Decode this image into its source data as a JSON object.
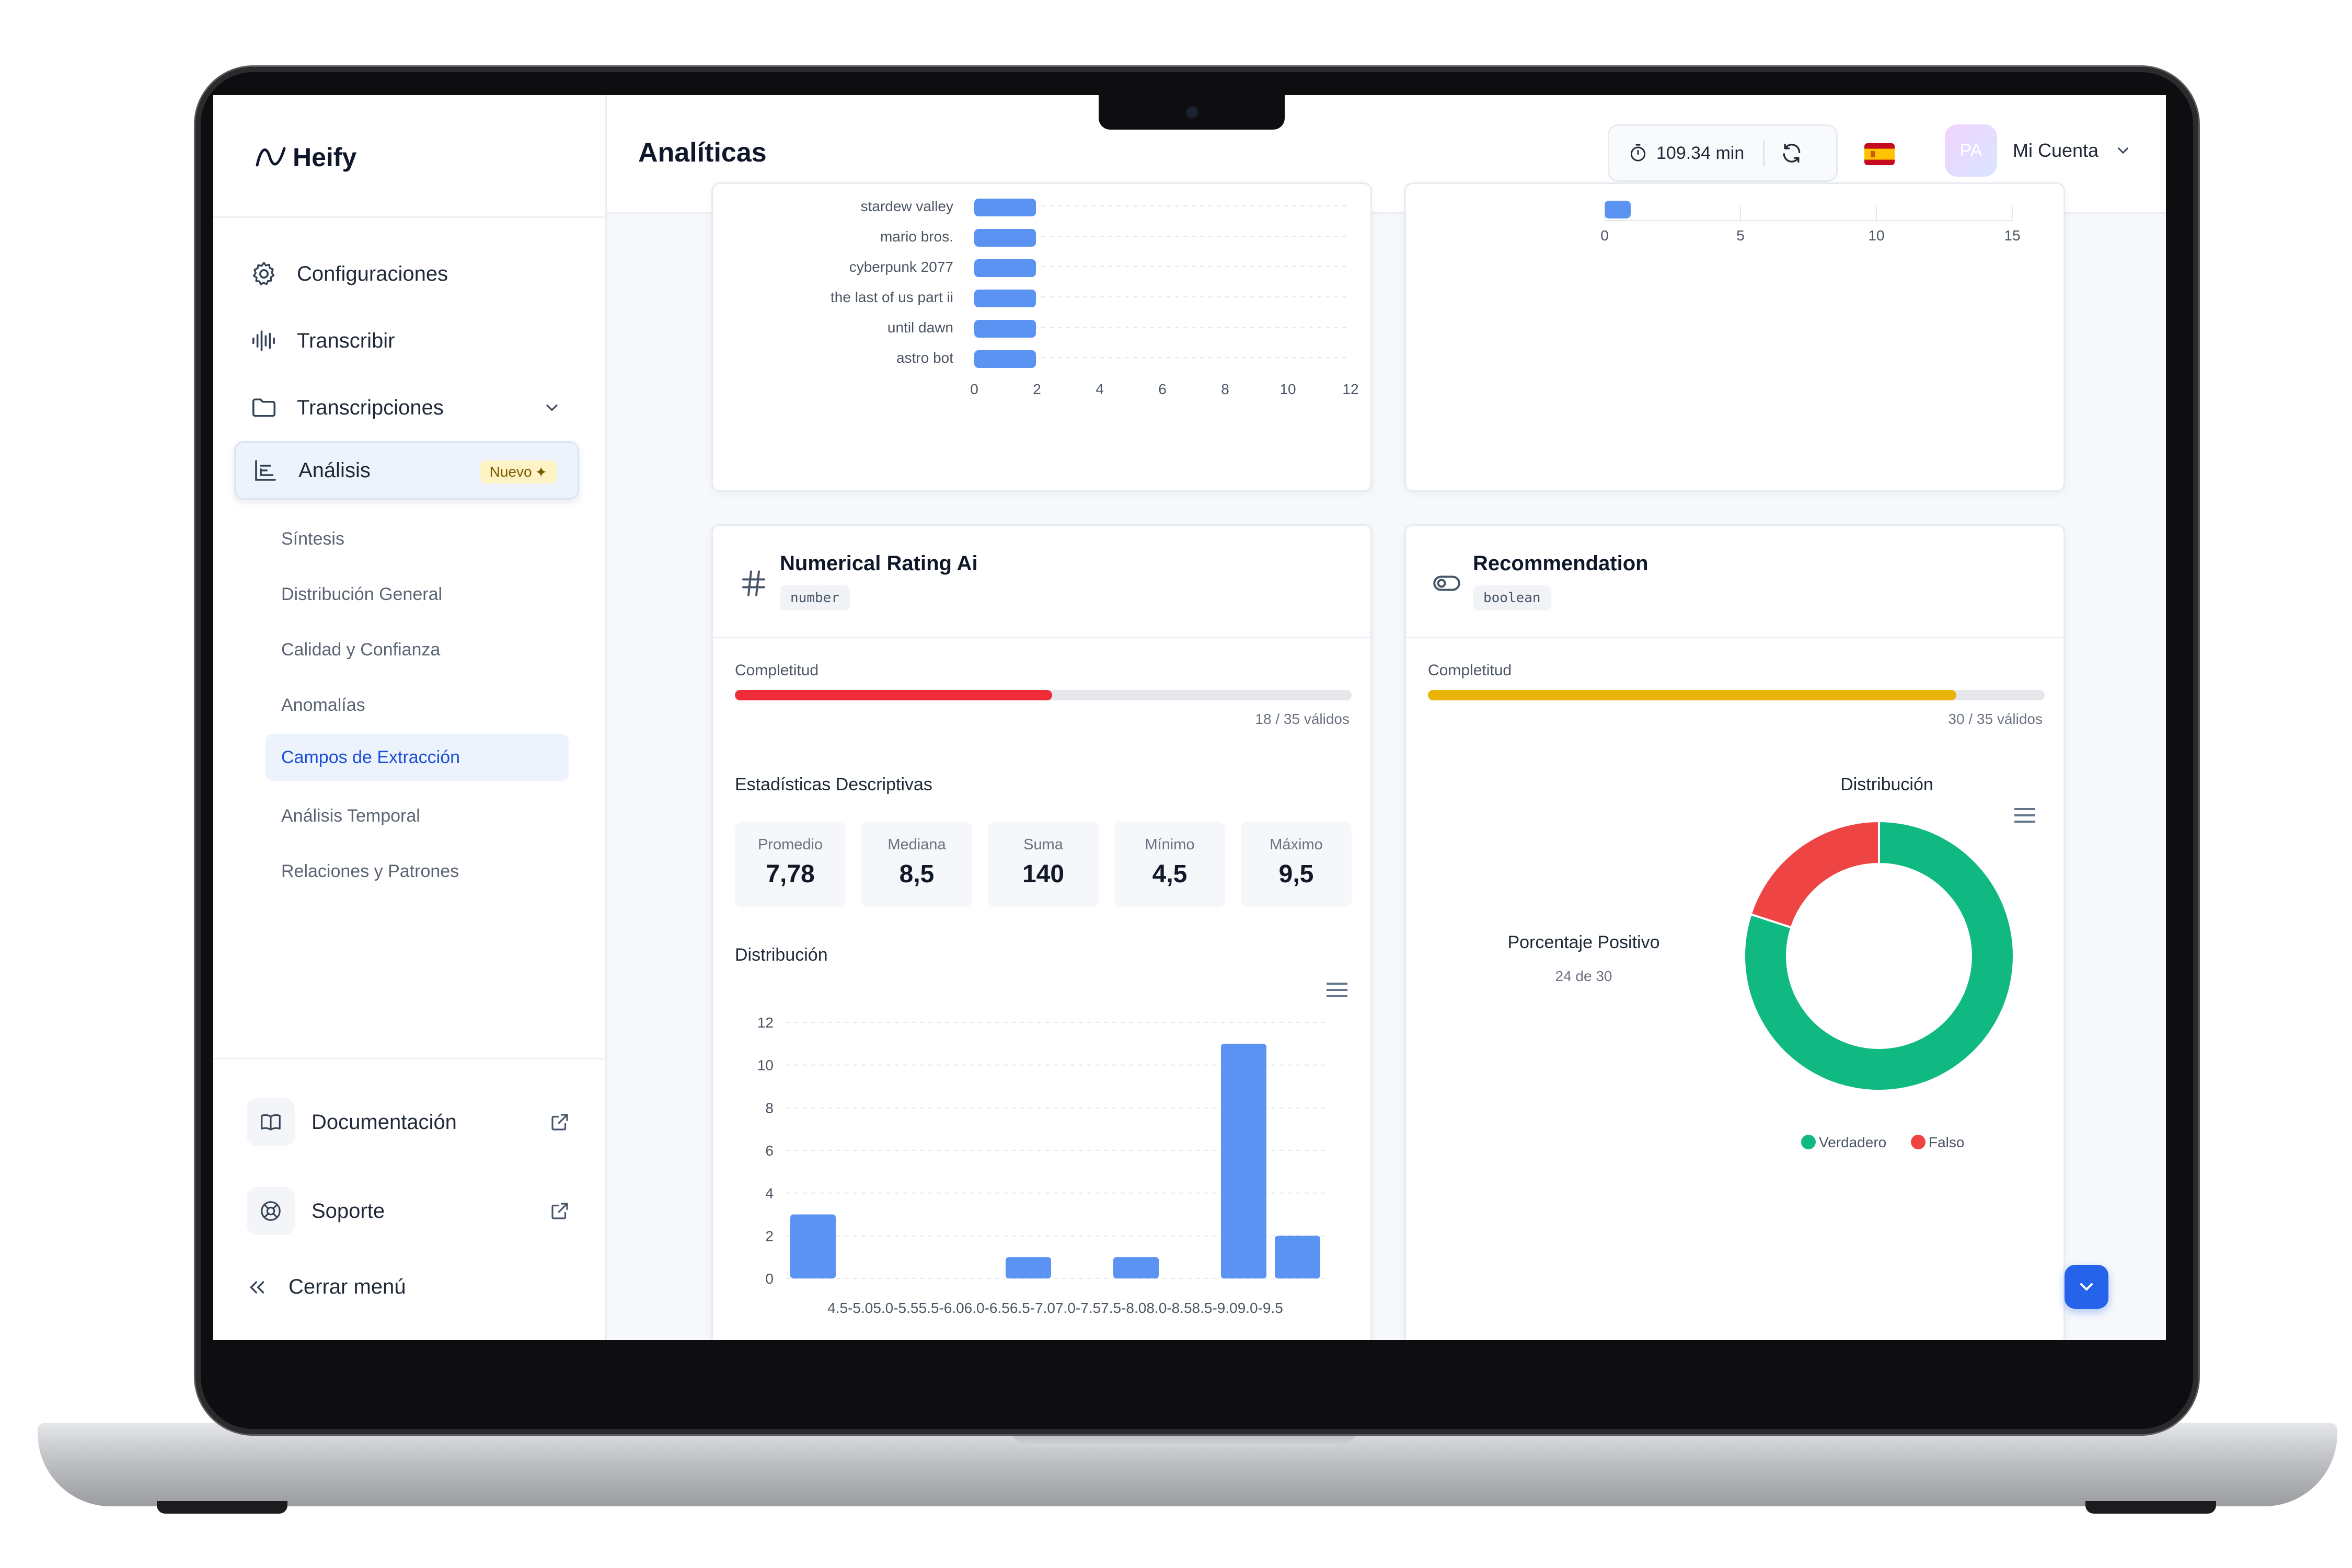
{
  "brand": {
    "name": "Heify"
  },
  "sidebar": {
    "items": [
      {
        "label": "Configuraciones",
        "icon": "gear-icon"
      },
      {
        "label": "Transcribir",
        "icon": "waveform-icon"
      },
      {
        "label": "Transcripciones",
        "icon": "folder-icon"
      },
      {
        "label": "Análisis",
        "icon": "bar-chart-icon",
        "badge": "Nuevo"
      }
    ],
    "subitems": [
      "Síntesis",
      "Distribución General",
      "Calidad y Confianza",
      "Anomalías",
      "Campos de Extracción",
      "Análisis Temporal",
      "Relaciones y Patrones"
    ],
    "active_subitem": "Campos de Extracción",
    "footer": {
      "docs": "Documentación",
      "support": "Soporte",
      "collapse": "Cerrar menú"
    }
  },
  "header": {
    "title": "Analíticas",
    "timer": "109.34 min",
    "account": "Mi Cuenta",
    "avatar": "PA"
  },
  "top_left_chart": {
    "categories": [
      "stardew valley",
      "mario bros.",
      "cyberpunk 2077",
      "the last of us part ii",
      "until dawn",
      "astro bot"
    ],
    "values": [
      1,
      1,
      1,
      1,
      1,
      1
    ],
    "xticks": [
      "0",
      "2",
      "4",
      "6",
      "8",
      "10",
      "12"
    ],
    "xlim": [
      0,
      12
    ]
  },
  "top_right_chart": {
    "values": [
      1
    ],
    "xticks": [
      "0",
      "5",
      "10",
      "15"
    ],
    "xlim": [
      0,
      15
    ]
  },
  "numerical_card": {
    "title": "Numerical Rating Ai",
    "type": "number",
    "completeness_label": "Completitud",
    "completeness": 0.514,
    "completeness_color": "#ef2b3a",
    "valid_text": "18 / 35 válidos",
    "stats_title": "Estadísticas Descriptivas",
    "stats": [
      {
        "label": "Promedio",
        "value": "7,78"
      },
      {
        "label": "Mediana",
        "value": "8,5"
      },
      {
        "label": "Suma",
        "value": "140"
      },
      {
        "label": "Mínimo",
        "value": "4,5"
      },
      {
        "label": "Máximo",
        "value": "9,5"
      }
    ],
    "dist_title": "Distribución"
  },
  "boolean_card": {
    "title": "Recommendation",
    "type": "boolean",
    "completeness_label": "Completitud",
    "completeness": 0.857,
    "completeness_color": "#eab308",
    "valid_text": "30 / 35 válidos",
    "dist_title": "Distribución",
    "positive_label": "Porcentaje Positivo",
    "positive_sub": "24 de 30"
  },
  "chart_data": [
    {
      "type": "bar",
      "title": "Distribución",
      "categories": [
        "4.5-5.0",
        "5.0-5.5",
        "5.5-6.0",
        "6.0-6.5",
        "6.5-7.0",
        "7.0-7.5",
        "7.5-8.0",
        "8.0-8.5",
        "8.5-9.0",
        "9.0-9.5"
      ],
      "values": [
        3,
        0,
        0,
        0,
        1,
        0,
        1,
        0,
        11,
        2
      ],
      "yticks": [
        "0",
        "2",
        "4",
        "6",
        "8",
        "10",
        "12"
      ],
      "ylim": [
        0,
        12
      ],
      "color": "#5b93f2"
    },
    {
      "type": "pie",
      "title": "Distribución",
      "categories": [
        "Verdadero",
        "Falso"
      ],
      "values": [
        24,
        6
      ],
      "colors": [
        "#10b981",
        "#ef4444"
      ],
      "legend": "bottom"
    }
  ]
}
